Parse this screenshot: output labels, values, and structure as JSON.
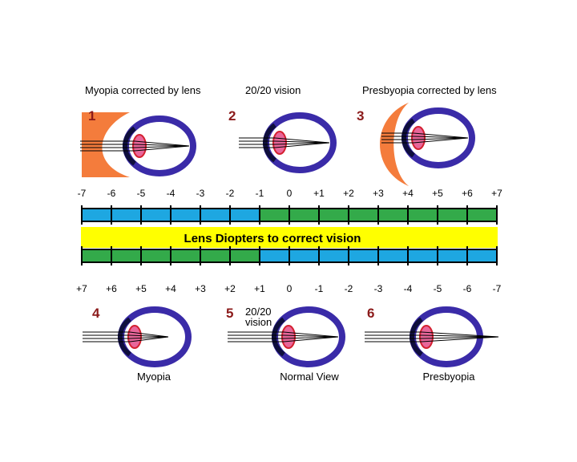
{
  "banner": "Lens Diopters to correct vision",
  "top_captions": [
    "Myopia corrected by lens",
    "20/20 vision",
    "Presbyopia corrected by lens"
  ],
  "bottom_captions": [
    "Myopia",
    "Normal View",
    "Presbyopia"
  ],
  "panel5_label_lines": [
    "20/20",
    "vision"
  ],
  "numbers": [
    "1",
    "2",
    "3",
    "4",
    "5",
    "6"
  ],
  "top_scale": [
    "-7",
    "-6",
    "-5",
    "-4",
    "-3",
    "-2",
    "-1",
    "0",
    "+1",
    "+2",
    "+3",
    "+4",
    "+5",
    "+6",
    "+7"
  ],
  "bottom_scale": [
    "+7",
    "+6",
    "+5",
    "+4",
    "+3",
    "+2",
    "+1",
    "0",
    "-1",
    "-2",
    "-3",
    "-4",
    "-5",
    "-6",
    "-7"
  ],
  "top_bar_segments": [
    "blue",
    "blue",
    "blue",
    "blue",
    "blue",
    "blue",
    "green",
    "green",
    "green",
    "green",
    "green",
    "green",
    "green",
    "green"
  ],
  "bottom_bar_segments": [
    "green",
    "green",
    "green",
    "green",
    "green",
    "green",
    "blue",
    "blue",
    "blue",
    "blue",
    "blue",
    "blue",
    "blue",
    "blue"
  ],
  "colors": {
    "blue_segment": "#1ea7e1",
    "green_segment": "#33aa4a",
    "banner": "#ffff00",
    "eye_outline": "#3a2ba8",
    "cornea": "#0e0e3c",
    "lens": "#e8669a",
    "lens_edge": "#d42030",
    "corrective_lens": "#f47c3c",
    "panel_number": "#8b1a1a"
  }
}
